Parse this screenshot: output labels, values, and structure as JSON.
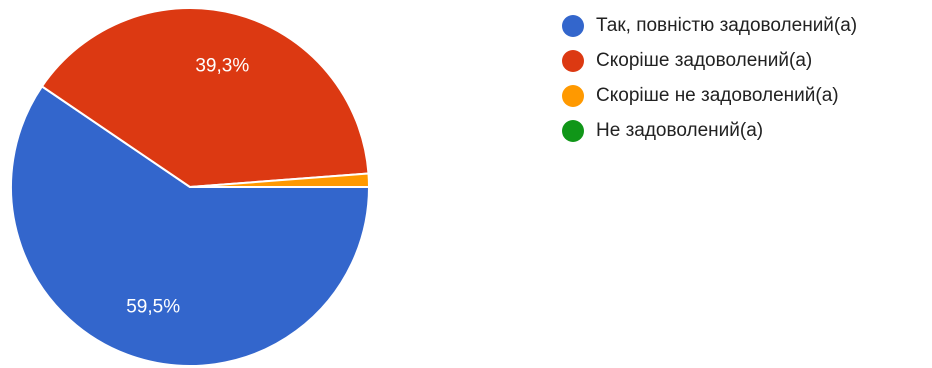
{
  "chart_data": {
    "type": "pie",
    "categories": [
      "Так, повністю задоволений(а)",
      "Скоріше задоволений(а)",
      "Скоріше не задоволений(а)",
      "Не задоволений(а)"
    ],
    "values": [
      59.5,
      39.3,
      1.2,
      0
    ],
    "data_labels": [
      "59,5%",
      "39,3%",
      "",
      ""
    ],
    "colors": [
      "#3366cc",
      "#dc3912",
      "#ff9900",
      "#109618"
    ],
    "legend_position": "right",
    "start": "3 o'clock, clockwise"
  }
}
